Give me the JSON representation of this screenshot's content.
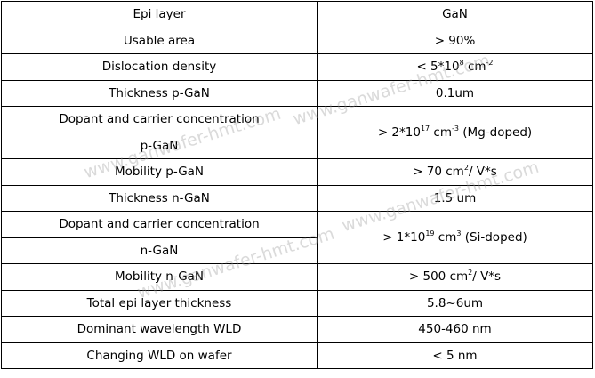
{
  "rows": [
    {
      "label": "Epi layer",
      "value": [
        "GaN"
      ]
    },
    {
      "label": "Usable area",
      "value": [
        "> 90%"
      ]
    },
    {
      "label": "Dislocation density",
      "value": [
        "< 5*10",
        "8",
        " cm",
        "-2",
        ""
      ]
    },
    {
      "label": "Thickness p-GaN",
      "value": [
        "0.1um"
      ]
    },
    {
      "label": "Dopant and carrier concentration",
      "label2": "p-GaN",
      "value": [
        "> 2*10",
        "17",
        " cm",
        "-3",
        " (Mg-doped)"
      ]
    },
    {
      "label": "Mobility p-GaN",
      "value": [
        "> 70 cm",
        "2",
        "/ V*s"
      ]
    },
    {
      "label": "Thickness n-GaN",
      "value": [
        "1.5 um"
      ]
    },
    {
      "label": "Dopant and carrier concentration",
      "label2": "n-GaN",
      "value": [
        "> 1*10",
        "19",
        " cm",
        "3",
        " (Si-doped)"
      ]
    },
    {
      "label": "Mobility n-GaN",
      "value": [
        "> 500 cm",
        "2",
        "/ V*s"
      ]
    },
    {
      "label": "Total epi layer thickness",
      "value": [
        "5.8~6um"
      ]
    },
    {
      "label": "Dominant wavelength WLD",
      "value": [
        "450-460 nm"
      ]
    },
    {
      "label": "Changing WLD on wafer",
      "value": [
        "< 5 nm"
      ]
    }
  ],
  "watermark": "www.ganwafer-hmt.com"
}
